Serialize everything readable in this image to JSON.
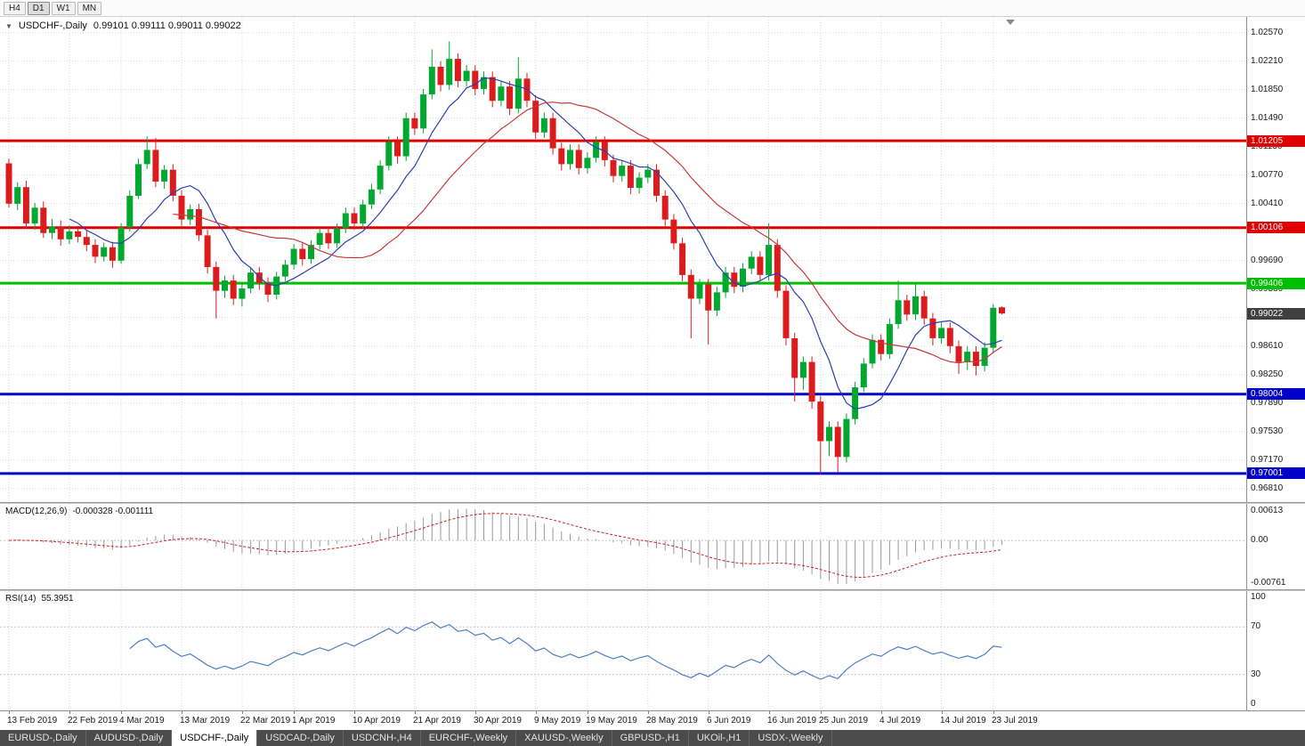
{
  "toolbar": {
    "timeframes": [
      "H4",
      "D1",
      "W1",
      "MN"
    ],
    "active": "D1"
  },
  "tabs": {
    "items": [
      {
        "label": "EURUSD-,Daily",
        "active": false
      },
      {
        "label": "AUDUSD-,Daily",
        "active": false
      },
      {
        "label": "USDCHF-,Daily",
        "active": true
      },
      {
        "label": "USDCAD-,Daily",
        "active": false
      },
      {
        "label": "USDCNH-,H4",
        "active": false
      },
      {
        "label": "EURCHF-,Weekly",
        "active": false
      },
      {
        "label": "XAUUSD-,Weekly",
        "active": false
      },
      {
        "label": "GBPUSD-,H1",
        "active": false
      },
      {
        "label": "UKOil-,H1",
        "active": false
      },
      {
        "label": "USDX-,Weekly",
        "active": false
      }
    ]
  },
  "chart_data": {
    "type": "candlestick",
    "symbol": "USDCHF",
    "timeframe": "Daily",
    "title": {
      "symbol": "USDCHF-,Daily",
      "ohlc": "0.99101 0.99111 0.99011 0.99022"
    },
    "colors": {
      "bull": "#00A830",
      "bear": "#DC1C1C",
      "grid": "#dadada",
      "ma_fast": "#2B3FAF",
      "ma_slow": "#C23B3B",
      "macd_hist": "#9a9a9a",
      "macd_signal": "#CC2222",
      "rsi_line": "#4E7FC4"
    },
    "price_axis": [
      {
        "v": 1.0257,
        "label": "1.02570"
      },
      {
        "v": 1.0221,
        "label": "1.02210"
      },
      {
        "v": 1.0185,
        "label": "1.01850"
      },
      {
        "v": 1.0149,
        "label": "1.01490"
      },
      {
        "v": 1.0113,
        "label": "1.01130"
      },
      {
        "v": 1.0077,
        "label": "1.00770"
      },
      {
        "v": 1.0041,
        "label": "1.00410"
      },
      {
        "v": 0.9969,
        "label": "0.99690"
      },
      {
        "v": 0.9933,
        "label": "0.99330"
      },
      {
        "v": 0.9861,
        "label": "0.98610"
      },
      {
        "v": 0.9825,
        "label": "0.98250"
      },
      {
        "v": 0.9789,
        "label": "0.97890"
      },
      {
        "v": 0.9753,
        "label": "0.97530"
      },
      {
        "v": 0.9717,
        "label": "0.97170"
      },
      {
        "v": 0.9681,
        "label": "0.96810"
      }
    ],
    "extra_gridlines": [
      1.0005,
      0.9897
    ],
    "hlines": [
      {
        "v": 1.01205,
        "label": "1.01205",
        "color": "#E00000"
      },
      {
        "v": 1.00106,
        "label": "1.00106",
        "color": "#E00000"
      },
      {
        "v": 0.99406,
        "label": "0.99406",
        "color": "#00BE00"
      },
      {
        "v": 0.98004,
        "label": "0.98004",
        "color": "#0000C8"
      },
      {
        "v": 0.97001,
        "label": "0.97001",
        "color": "#0000C8"
      }
    ],
    "current_price": {
      "v": 0.99022,
      "label": "0.99022",
      "badge": "#3F3F3F"
    },
    "moving_averages": [
      {
        "type": "SMA",
        "period": 8,
        "color": "#2B3FAF"
      },
      {
        "type": "SMA",
        "period": 20,
        "color": "#C23B3B"
      }
    ],
    "macd": {
      "label": "MACD(12,26,9)",
      "values_text": "-0.000328 -0.001111",
      "fast": 12,
      "slow": 26,
      "signal_period": 9,
      "axis_labels": [
        "0.00613",
        "0.00",
        "-0.00761"
      ]
    },
    "rsi": {
      "label": "RSI(14)",
      "value_text": "55.3951",
      "period": 14,
      "axis_labels": [
        "100",
        "70",
        "30",
        "0"
      ],
      "levels": [
        70,
        30
      ]
    },
    "date_ticks": [
      {
        "i": 0,
        "label": "13 Feb 2019"
      },
      {
        "i": 7,
        "label": "22 Feb 2019"
      },
      {
        "i": 13,
        "label": "4 Mar 2019"
      },
      {
        "i": 20,
        "label": "13 Mar 2019"
      },
      {
        "i": 27,
        "label": "22 Mar 2019"
      },
      {
        "i": 33,
        "label": "1 Apr 2019"
      },
      {
        "i": 40,
        "label": "10 Apr 2019"
      },
      {
        "i": 47,
        "label": "21 Apr 2019"
      },
      {
        "i": 54,
        "label": "30 Apr 2019"
      },
      {
        "i": 61,
        "label": "9 May 2019"
      },
      {
        "i": 67,
        "label": "19 May 2019"
      },
      {
        "i": 74,
        "label": "28 May 2019"
      },
      {
        "i": 81,
        "label": "6 Jun 2019"
      },
      {
        "i": 88,
        "label": "16 Jun 2019"
      },
      {
        "i": 94,
        "label": "25 Jun 2019"
      },
      {
        "i": 101,
        "label": "4 Jul 2019"
      },
      {
        "i": 108,
        "label": "14 Jul 2019"
      },
      {
        "i": 114,
        "label": "23 Jul 2019"
      }
    ],
    "candles": [
      [
        1.0092,
        1.0098,
        1.0036,
        1.0041
      ],
      [
        1.0041,
        1.0068,
        1.0033,
        1.0062
      ],
      [
        1.0062,
        1.007,
        1.001,
        1.0016
      ],
      [
        1.0016,
        1.0042,
        1.0008,
        1.0036
      ],
      [
        1.0036,
        1.0044,
        0.9998,
        1.0004
      ],
      [
        1.0004,
        1.0022,
        0.9996,
        1.0012
      ],
      [
        1.0012,
        1.002,
        0.9988,
        0.9996
      ],
      [
        0.9996,
        1.0014,
        0.999,
        1.0006
      ],
      [
        1.0006,
        1.0013,
        0.9992,
        0.9999
      ],
      [
        0.9999,
        1.0007,
        0.9981,
        0.9989
      ],
      [
        0.9989,
        0.9996,
        0.9966,
        0.9974
      ],
      [
        0.9974,
        0.9992,
        0.9968,
        0.9986
      ],
      [
        0.9986,
        0.9993,
        0.996,
        0.9969
      ],
      [
        0.9969,
        1.0016,
        0.9965,
        1.0011
      ],
      [
        1.0011,
        1.0058,
        1.0006,
        1.0051
      ],
      [
        1.0051,
        1.0098,
        1.0047,
        1.0091
      ],
      [
        1.0091,
        1.0126,
        1.0085,
        1.0109
      ],
      [
        1.0109,
        1.0124,
        1.0062,
        1.0069
      ],
      [
        1.0069,
        1.009,
        1.006,
        1.0084
      ],
      [
        1.0084,
        1.0091,
        1.0044,
        1.0051
      ],
      [
        1.0051,
        1.0058,
        1.0013,
        1.0021
      ],
      [
        1.0021,
        1.004,
        1.0014,
        1.0034
      ],
      [
        1.0034,
        1.0041,
        0.9994,
        1.0001
      ],
      [
        1.0001,
        1.0008,
        0.9953,
        0.9961
      ],
      [
        0.9961,
        0.9968,
        0.9896,
        0.9931
      ],
      [
        0.9931,
        0.995,
        0.9922,
        0.9944
      ],
      [
        0.9944,
        0.9951,
        0.9913,
        0.9921
      ],
      [
        0.9921,
        0.9941,
        0.9911,
        0.9934
      ],
      [
        0.9934,
        0.996,
        0.9928,
        0.9954
      ],
      [
        0.9954,
        0.9961,
        0.9932,
        0.9941
      ],
      [
        0.9941,
        0.9948,
        0.9917,
        0.9926
      ],
      [
        0.9926,
        0.9955,
        0.992,
        0.9949
      ],
      [
        0.9949,
        0.997,
        0.9943,
        0.9964
      ],
      [
        0.9964,
        0.999,
        0.9958,
        0.9984
      ],
      [
        0.9984,
        0.9991,
        0.9963,
        0.9971
      ],
      [
        0.9971,
        0.9995,
        0.9965,
        0.9989
      ],
      [
        0.9989,
        1.0011,
        0.9983,
        1.0004
      ],
      [
        1.0004,
        1.0011,
        0.9984,
        0.9991
      ],
      [
        0.9991,
        1.0016,
        0.9985,
        1.001
      ],
      [
        1.001,
        1.0036,
        1.0004,
        1.0029
      ],
      [
        1.0029,
        1.0036,
        1.0008,
        1.0016
      ],
      [
        1.0016,
        1.0046,
        1.001,
        1.004
      ],
      [
        1.004,
        1.0066,
        1.0034,
        1.0059
      ],
      [
        1.0059,
        1.0096,
        1.0053,
        1.0089
      ],
      [
        1.0089,
        1.0126,
        1.0083,
        1.0119
      ],
      [
        1.0119,
        1.0126,
        1.0092,
        1.0101
      ],
      [
        1.0101,
        1.0156,
        1.0095,
        1.0149
      ],
      [
        1.0149,
        1.0156,
        1.0128,
        1.0136
      ],
      [
        1.0136,
        1.0186,
        1.013,
        1.0179
      ],
      [
        1.0179,
        1.0236,
        1.0173,
        1.0214
      ],
      [
        1.0214,
        1.0221,
        1.0183,
        1.0191
      ],
      [
        1.0191,
        1.0246,
        1.0185,
        1.0224
      ],
      [
        1.0224,
        1.0231,
        1.0188,
        1.0196
      ],
      [
        1.0196,
        1.0216,
        1.0189,
        1.0209
      ],
      [
        1.0209,
        1.0216,
        1.0178,
        1.0186
      ],
      [
        1.0186,
        1.0208,
        1.0179,
        1.0201
      ],
      [
        1.0201,
        1.0208,
        1.0163,
        1.0171
      ],
      [
        1.0171,
        1.0196,
        1.0164,
        1.0189
      ],
      [
        1.0189,
        1.0196,
        1.0153,
        1.0161
      ],
      [
        1.0161,
        1.0226,
        1.0155,
        1.0199
      ],
      [
        1.0199,
        1.0206,
        1.0163,
        1.0171
      ],
      [
        1.0171,
        1.0178,
        1.0123,
        1.0131
      ],
      [
        1.0131,
        1.0156,
        1.0124,
        1.0149
      ],
      [
        1.0149,
        1.0156,
        1.0103,
        1.0111
      ],
      [
        1.0111,
        1.0118,
        1.0083,
        1.0091
      ],
      [
        1.0091,
        1.0116,
        1.0084,
        1.0109
      ],
      [
        1.0109,
        1.0116,
        1.0078,
        1.0086
      ],
      [
        1.0086,
        1.0106,
        1.0079,
        1.0099
      ],
      [
        1.0099,
        1.0126,
        1.0093,
        1.0119
      ],
      [
        1.0119,
        1.0126,
        1.0088,
        1.0096
      ],
      [
        1.0096,
        1.0103,
        1.0068,
        1.0076
      ],
      [
        1.0076,
        1.0096,
        1.0069,
        1.0089
      ],
      [
        1.0089,
        1.0096,
        1.0053,
        1.0061
      ],
      [
        1.0061,
        1.0081,
        1.0054,
        1.0074
      ],
      [
        1.0074,
        1.0091,
        1.0067,
        1.0084
      ],
      [
        1.0084,
        1.0091,
        1.0043,
        1.0051
      ],
      [
        1.0051,
        1.0058,
        1.0013,
        1.0021
      ],
      [
        1.0021,
        1.0028,
        0.9983,
        0.9991
      ],
      [
        0.9991,
        0.9998,
        0.9943,
        0.9951
      ],
      [
        0.9951,
        0.9958,
        0.9871,
        0.9921
      ],
      [
        0.9921,
        0.9946,
        0.9914,
        0.9939
      ],
      [
        0.9939,
        0.9946,
        0.9863,
        0.9906
      ],
      [
        0.9906,
        0.9936,
        0.9899,
        0.9929
      ],
      [
        0.9929,
        0.9961,
        0.9922,
        0.9954
      ],
      [
        0.9954,
        0.9961,
        0.9928,
        0.9936
      ],
      [
        0.9936,
        0.9966,
        0.9929,
        0.9959
      ],
      [
        0.9959,
        0.9981,
        0.9952,
        0.9974
      ],
      [
        0.9974,
        0.9981,
        0.9943,
        0.9951
      ],
      [
        0.9951,
        1.0016,
        0.9944,
        0.9989
      ],
      [
        0.9989,
        0.9996,
        0.9922,
        0.9931
      ],
      [
        0.9931,
        0.9938,
        0.9862,
        0.9871
      ],
      [
        0.9871,
        0.9878,
        0.9791,
        0.9821
      ],
      [
        0.9821,
        0.9848,
        0.9806,
        0.9841
      ],
      [
        0.9841,
        0.9848,
        0.9782,
        0.9791
      ],
      [
        0.9791,
        0.9798,
        0.9699,
        0.9741
      ],
      [
        0.9741,
        0.9766,
        0.9722,
        0.9759
      ],
      [
        0.9759,
        0.9766,
        0.9701,
        0.9721
      ],
      [
        0.9721,
        0.9776,
        0.9714,
        0.9769
      ],
      [
        0.9769,
        0.9816,
        0.9762,
        0.9809
      ],
      [
        0.9809,
        0.9846,
        0.9803,
        0.9839
      ],
      [
        0.9839,
        0.9876,
        0.9833,
        0.9869
      ],
      [
        0.9869,
        0.9876,
        0.9843,
        0.9851
      ],
      [
        0.9851,
        0.9896,
        0.9845,
        0.9889
      ],
      [
        0.9889,
        0.9944,
        0.9883,
        0.9919
      ],
      [
        0.9919,
        0.9926,
        0.9893,
        0.9901
      ],
      [
        0.9901,
        0.9941,
        0.9894,
        0.9924
      ],
      [
        0.9924,
        0.9931,
        0.9888,
        0.9896
      ],
      [
        0.9896,
        0.9903,
        0.9862,
        0.9871
      ],
      [
        0.9871,
        0.9891,
        0.9864,
        0.9884
      ],
      [
        0.9884,
        0.9891,
        0.9852,
        0.9861
      ],
      [
        0.9861,
        0.9868,
        0.9826,
        0.9841
      ],
      [
        0.9841,
        0.9861,
        0.9831,
        0.9854
      ],
      [
        0.9854,
        0.9861,
        0.9824,
        0.9836
      ],
      [
        0.9836,
        0.9866,
        0.9829,
        0.9859
      ],
      [
        0.9859,
        0.9914,
        0.9853,
        0.99095
      ],
      [
        0.99101,
        0.99111,
        0.99011,
        0.99022
      ]
    ]
  }
}
